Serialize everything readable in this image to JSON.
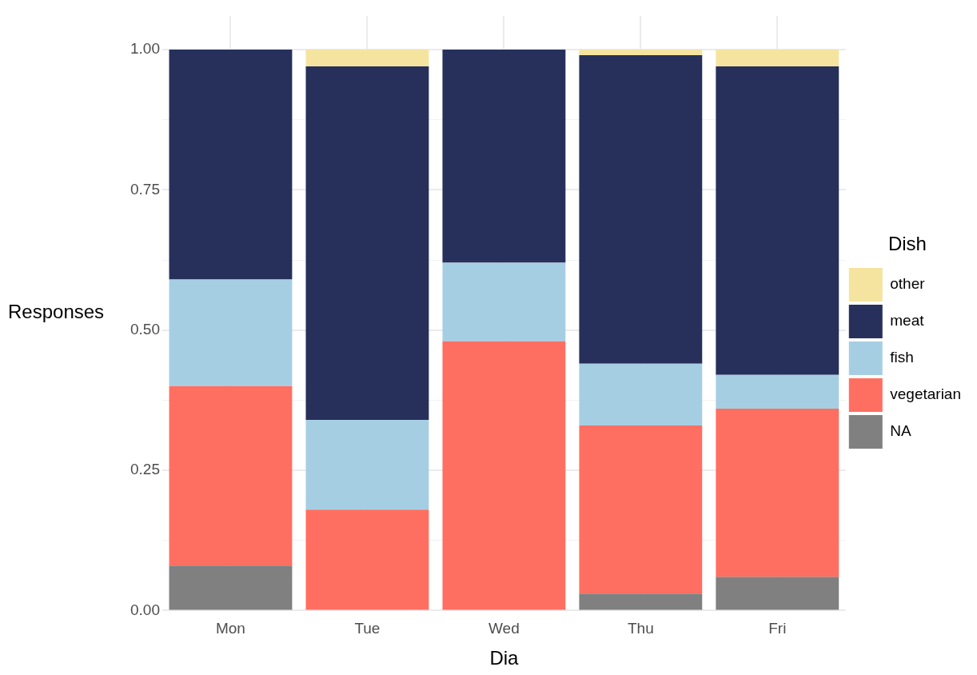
{
  "chart_data": {
    "type": "bar",
    "stacked": true,
    "xlabel": "Dia",
    "ylabel": "Responses",
    "legend_title": "Dish",
    "legend": "right",
    "grid": true,
    "categories": [
      "Mon",
      "Tue",
      "Wed",
      "Thu",
      "Fri"
    ],
    "ylim": [
      0,
      1.06
    ],
    "yticks": [
      {
        "value": 0,
        "label": "0.00"
      },
      {
        "value": 0.125,
        "label": null
      },
      {
        "value": 0.25,
        "label": "0.25"
      },
      {
        "value": 0.375,
        "label": null
      },
      {
        "value": 0.5,
        "label": "0.50"
      },
      {
        "value": 0.625,
        "label": null
      },
      {
        "value": 0.75,
        "label": "0.75"
      },
      {
        "value": 0.875,
        "label": null
      },
      {
        "value": 1,
        "label": "1.00"
      }
    ],
    "series": [
      {
        "name": "NA",
        "color": "#808080",
        "values": [
          0.08,
          0,
          0,
          0.03,
          0.06
        ]
      },
      {
        "name": "vegetarian",
        "color": "#ff6f61",
        "values": [
          0.32,
          0.18,
          0.48,
          0.3,
          0.3
        ]
      },
      {
        "name": "fish",
        "color": "#a6cee3",
        "values": [
          0.19,
          0.16,
          0.14,
          0.11,
          0.06
        ]
      },
      {
        "name": "meat",
        "color": "#27305b",
        "values": [
          0.41,
          0.63,
          0.38,
          0.55,
          0.55
        ]
      },
      {
        "name": "other",
        "color": "#f4e4a0",
        "values": [
          0,
          0.03,
          0,
          0.01,
          0.03
        ]
      }
    ]
  }
}
